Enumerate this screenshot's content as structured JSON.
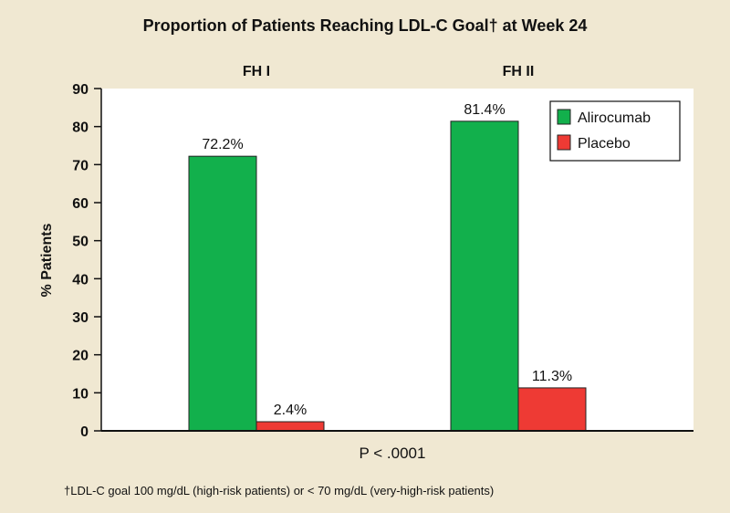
{
  "chart_data": {
    "type": "bar",
    "title": "Proportion of Patients Reaching LDL-C Goal† at Week 24",
    "categories": [
      "FH I",
      "FH II"
    ],
    "series": [
      {
        "name": "Alirocumab",
        "color": "#12b04c",
        "values": [
          72.2,
          81.4
        ],
        "labels": [
          "72.2%",
          "81.4%"
        ]
      },
      {
        "name": "Placebo",
        "color": "#ee3a34",
        "values": [
          2.4,
          11.3
        ],
        "labels": [
          "2.4%",
          "11.3%"
        ]
      }
    ],
    "ylabel": "% Patients",
    "xlabel": "P < .0001",
    "ylim": [
      0,
      90
    ],
    "yticks": [
      "0",
      "10",
      "20",
      "30",
      "40",
      "50",
      "60",
      "70",
      "80",
      "90"
    ],
    "grid": false,
    "legend_position": "top-right",
    "footnote": "†LDL-C goal 100 mg/dL (high-risk patients) or < 70 mg/dL (very-high-risk patients)"
  }
}
